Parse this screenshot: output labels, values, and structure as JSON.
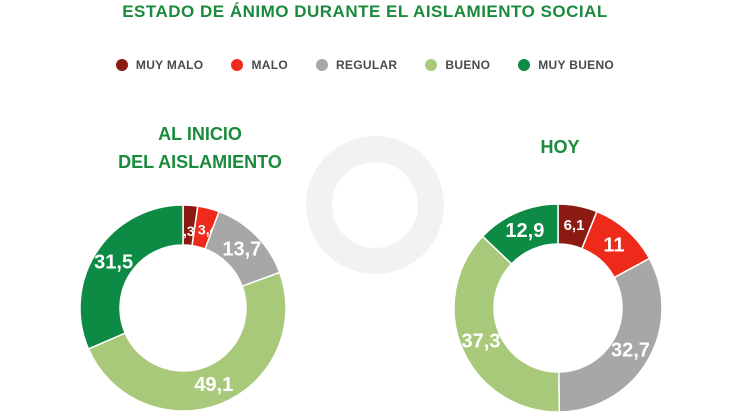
{
  "title": "ESTADO DE ÁNIMO DURANTE EL AISLAMIENTO SOCIAL",
  "colors": {
    "title": "#1a8a3c",
    "muy_malo": "#8b1a12",
    "malo": "#ee2a1b",
    "regular": "#a7a7a7",
    "bueno": "#a9c97a",
    "muy_bueno": "#0d8a44"
  },
  "legend": [
    {
      "label": "MUY MALO",
      "color": "#8b1a12"
    },
    {
      "label": "MALO",
      "color": "#ee2a1b"
    },
    {
      "label": "REGULAR",
      "color": "#a7a7a7"
    },
    {
      "label": "BUENO",
      "color": "#a9c97a"
    },
    {
      "label": "MUY BUENO",
      "color": "#0d8a44"
    }
  ],
  "chart_data": [
    {
      "type": "pie",
      "title_lines": [
        "AL INICIO",
        "DEL AISLAMIENTO"
      ],
      "categories": [
        "MUY MALO",
        "MALO",
        "REGULAR",
        "BUENO",
        "MUY BUENO"
      ],
      "values": [
        2.3,
        3.4,
        13.7,
        49.1,
        31.5
      ],
      "labels": [
        "2,3",
        "3,4",
        "13,7",
        "49,1",
        "31,5"
      ]
    },
    {
      "type": "pie",
      "title_lines": [
        "HOY"
      ],
      "categories": [
        "MUY MALO",
        "MALO",
        "REGULAR",
        "BUENO",
        "MUY BUENO"
      ],
      "values": [
        6.1,
        11,
        32.7,
        37.3,
        12.9
      ],
      "labels": [
        "6,1",
        "11",
        "32,7",
        "37,3",
        "12,9"
      ]
    }
  ]
}
